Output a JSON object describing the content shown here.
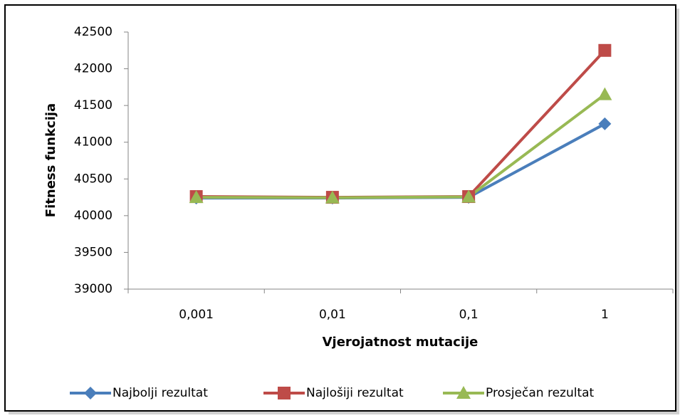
{
  "chart_data": {
    "type": "line",
    "xlabel": "Vjerojatnost mutacije",
    "ylabel": "Fitness funkcija",
    "categories": [
      "0,001",
      "0,01",
      "0,1",
      "1"
    ],
    "series": [
      {
        "name": "Najbolji rezultat",
        "color": "#4a7ebb",
        "marker": "diamond",
        "values": [
          40240,
          40240,
          40250,
          41250
        ]
      },
      {
        "name": "Najlošiji rezultat",
        "color": "#be4b48",
        "marker": "square",
        "values": [
          40260,
          40250,
          40260,
          42250
        ]
      },
      {
        "name": "Prosječan rezultat",
        "color": "#98b954",
        "marker": "triangle",
        "values": [
          40250,
          40245,
          40255,
          41650
        ]
      }
    ],
    "ylim": [
      39000,
      42500
    ],
    "yticks": [
      39000,
      39500,
      40000,
      40500,
      41000,
      41500,
      42000,
      42500
    ],
    "grid": false,
    "legend": "bottom"
  }
}
